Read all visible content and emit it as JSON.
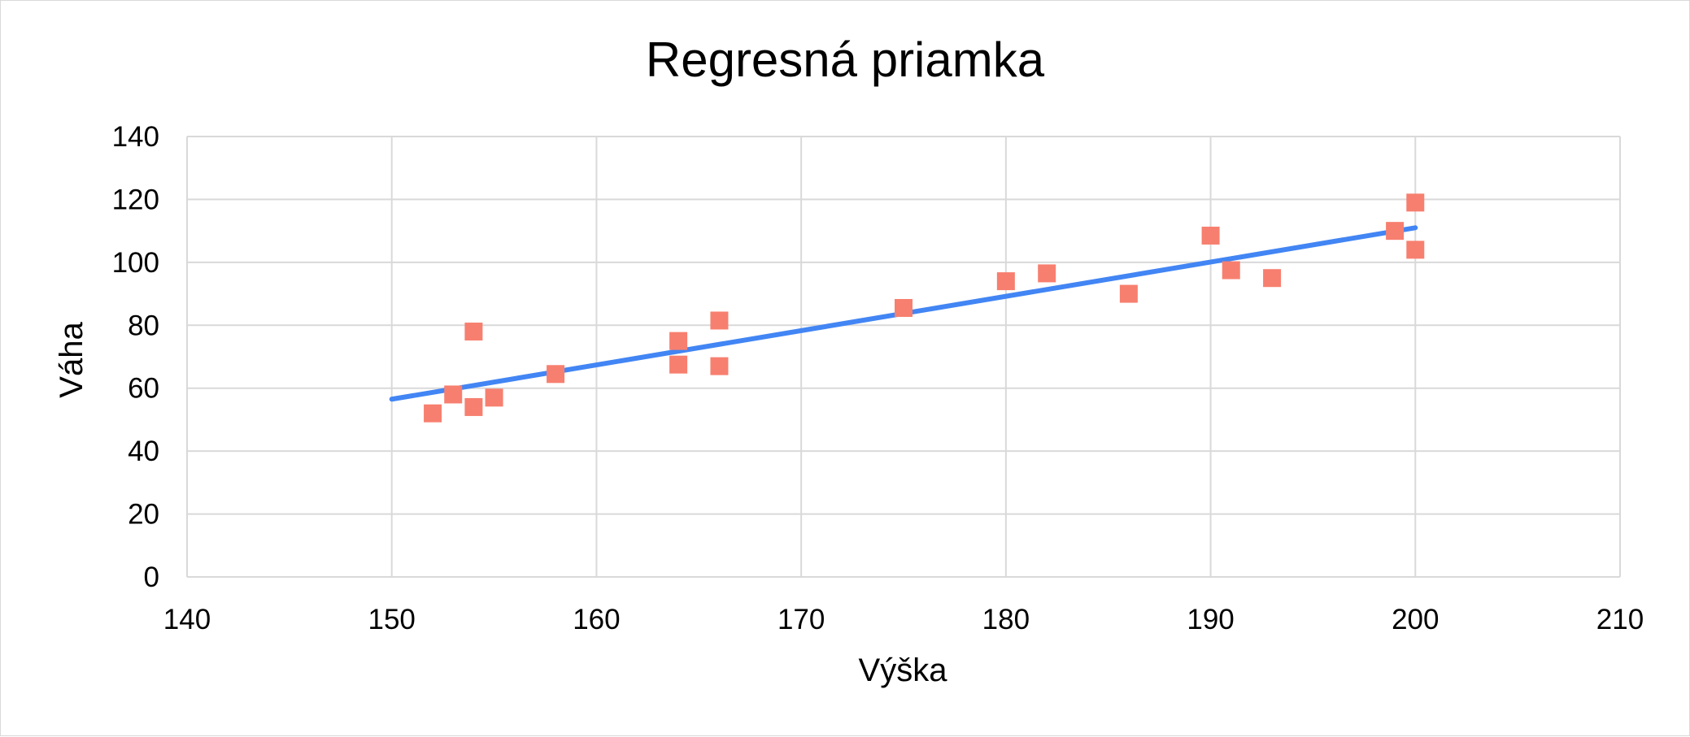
{
  "chart_data": {
    "type": "scatter",
    "title": "Regresná priamka",
    "xlabel": "Výška",
    "ylabel": "Váha",
    "xlim": [
      140,
      210
    ],
    "ylim": [
      0,
      140
    ],
    "x_ticks": [
      140,
      150,
      160,
      170,
      180,
      190,
      200,
      210
    ],
    "y_ticks": [
      0,
      20,
      40,
      60,
      80,
      100,
      120,
      140
    ],
    "grid": true,
    "legend": "none",
    "series": [
      {
        "type": "scatter",
        "marker": "square",
        "color": "#f77f6f",
        "points": [
          {
            "x": 152,
            "y": 52
          },
          {
            "x": 153,
            "y": 58
          },
          {
            "x": 154,
            "y": 54
          },
          {
            "x": 154,
            "y": 78
          },
          {
            "x": 155,
            "y": 57
          },
          {
            "x": 158,
            "y": 64.5
          },
          {
            "x": 164,
            "y": 67.5
          },
          {
            "x": 164,
            "y": 75
          },
          {
            "x": 166,
            "y": 67
          },
          {
            "x": 166,
            "y": 81.5
          },
          {
            "x": 175,
            "y": 85.5
          },
          {
            "x": 180,
            "y": 94
          },
          {
            "x": 182,
            "y": 96.5
          },
          {
            "x": 186,
            "y": 90
          },
          {
            "x": 190,
            "y": 108.5
          },
          {
            "x": 191,
            "y": 97.5
          },
          {
            "x": 193,
            "y": 95
          },
          {
            "x": 199,
            "y": 110
          },
          {
            "x": 200,
            "y": 104
          },
          {
            "x": 200,
            "y": 119
          }
        ]
      },
      {
        "type": "line",
        "color": "#4285f4",
        "points": [
          {
            "x": 150,
            "y": 56.5
          },
          {
            "x": 200,
            "y": 111
          }
        ]
      }
    ]
  }
}
